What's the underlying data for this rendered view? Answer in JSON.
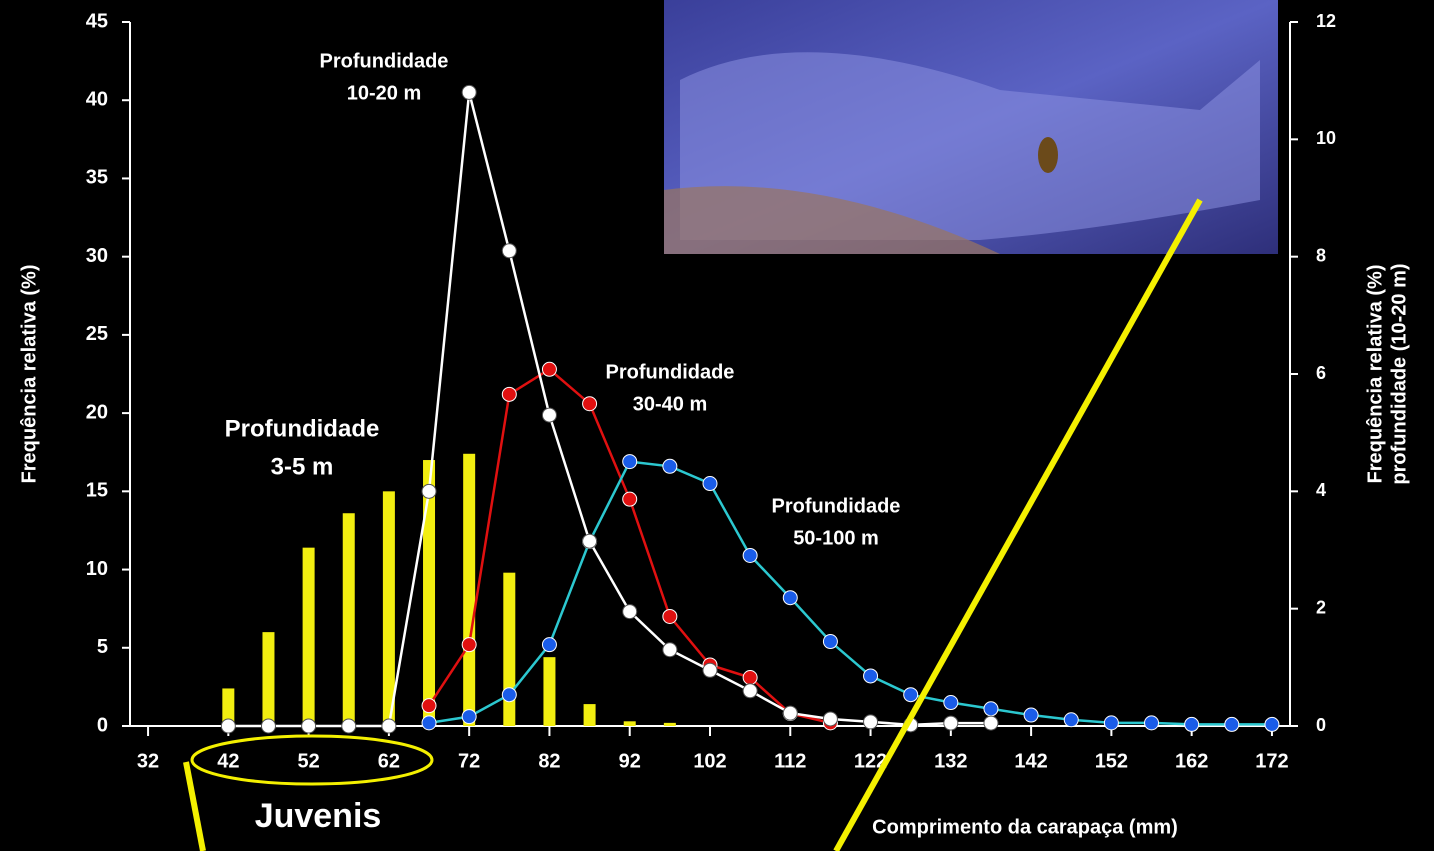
{
  "chart_data": {
    "type": "line",
    "title_annotations": [
      [
        "Profundidade",
        "10-20 m"
      ],
      [
        "Profundidade",
        "30-40 m"
      ],
      [
        "Profundidade",
        "3-5 m"
      ],
      [
        "Profundidade",
        "50-100 m"
      ]
    ],
    "juvenis_label": "Juvenis",
    "xlabel": "Comprimento da carapaça (mm)",
    "ylabel": "Frequência relativa (%)",
    "y2label": [
      "Frequência relativa (%)",
      "profundidade (10-20 m)"
    ],
    "x": [
      32,
      37,
      42,
      47,
      52,
      57,
      62,
      67,
      72,
      77,
      82,
      87,
      92,
      97,
      102,
      107,
      112,
      117,
      122,
      127,
      132,
      137,
      142,
      147,
      152,
      157,
      162,
      167,
      172
    ],
    "xlim": [
      30,
      174
    ],
    "xticks": [
      32,
      42,
      52,
      62,
      72,
      82,
      92,
      102,
      112,
      122,
      132,
      142,
      152,
      162,
      172
    ],
    "ylim": [
      0,
      45
    ],
    "yticks": [
      0,
      5,
      10,
      15,
      20,
      25,
      30,
      35,
      40,
      45
    ],
    "y2lim": [
      0,
      12
    ],
    "y2ticks": [
      0,
      2,
      4,
      6,
      8,
      10,
      12
    ],
    "series": [
      {
        "type": "bar",
        "color": "#f2ee10",
        "values": [
          null,
          null,
          2.4,
          6.0,
          11.4,
          13.6,
          15.0,
          17.0,
          17.4,
          9.8,
          4.4,
          1.4,
          0.3,
          0.2,
          null,
          null,
          null,
          null,
          null,
          null,
          null,
          null,
          null,
          null,
          null,
          null,
          null,
          null,
          null
        ]
      },
      {
        "type": "line",
        "color": "#e01010",
        "marker_color": "#e01010",
        "values": [
          null,
          null,
          null,
          null,
          null,
          null,
          null,
          1.3,
          5.2,
          21.2,
          22.8,
          20.6,
          14.5,
          7.0,
          3.9,
          3.1,
          0.8,
          0.2,
          null,
          null,
          null,
          null,
          null,
          null,
          null,
          null,
          null,
          null,
          null
        ]
      },
      {
        "type": "line",
        "color": "#2cc8d0",
        "marker_color": "#1a5ce8",
        "values": [
          null,
          null,
          null,
          null,
          null,
          null,
          null,
          0.2,
          0.6,
          2.0,
          5.2,
          11.8,
          16.9,
          16.6,
          15.5,
          10.9,
          8.2,
          5.4,
          3.2,
          2.0,
          1.5,
          1.1,
          0.7,
          0.4,
          0.2,
          0.2,
          0.1,
          0.1,
          0.1
        ]
      },
      {
        "type": "line",
        "axis": "y2",
        "color": "#ffffff",
        "marker_color": "#ffffff",
        "values": [
          null,
          null,
          0,
          0,
          0,
          0,
          0,
          4.0,
          10.8,
          8.1,
          5.3,
          3.15,
          1.95,
          1.3,
          0.95,
          0.6,
          0.22,
          0.12,
          0.07,
          0.02,
          0.05,
          0.05,
          null,
          null,
          null,
          null,
          null,
          null,
          null
        ]
      }
    ]
  }
}
